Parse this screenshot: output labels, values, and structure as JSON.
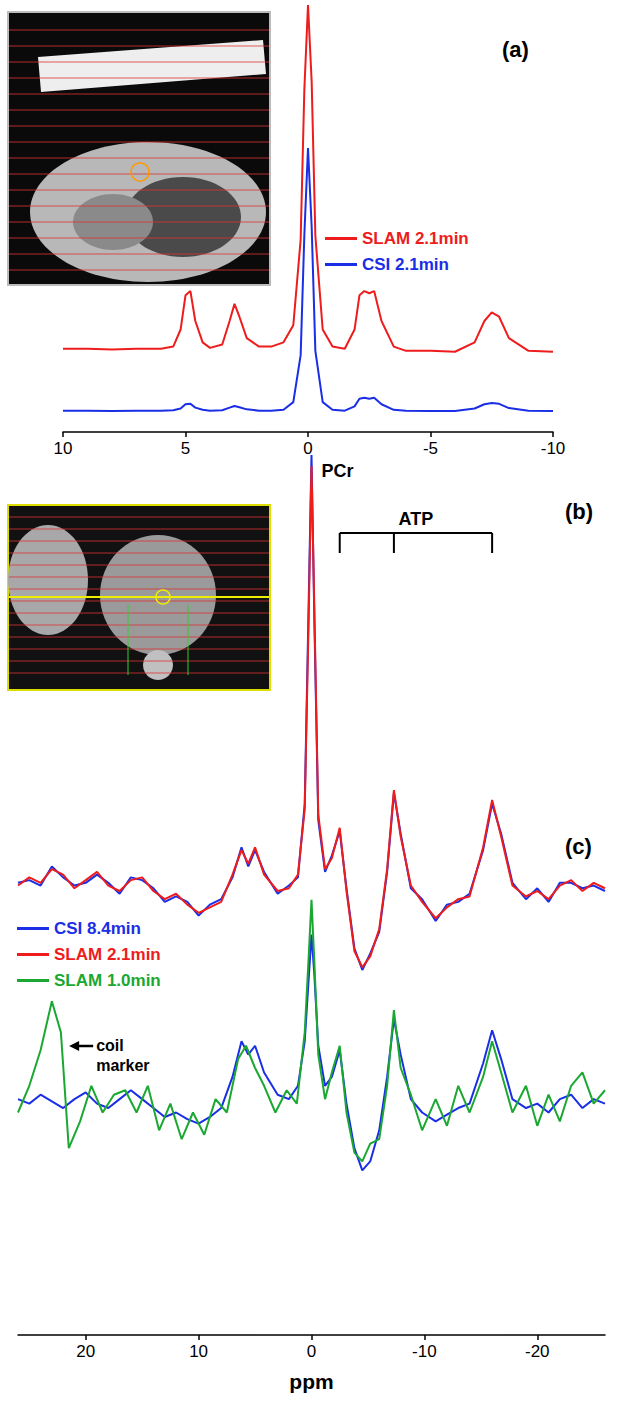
{
  "chart_data": [
    {
      "type": "line",
      "label": "(a)",
      "legend": "right",
      "tick_labels": "x",
      "grid": false,
      "marker": "none",
      "xlim": [
        10,
        -10
      ],
      "xticks": [
        10,
        5,
        0,
        -5,
        -10
      ],
      "ylim": [
        0,
        10
      ],
      "series": [
        {
          "name": "SLAM 2.1min",
          "color": "#ee1c1c",
          "x": [
            10,
            9,
            8,
            7,
            6,
            5.5,
            5.2,
            5.0,
            4.8,
            4.6,
            4.3,
            4,
            3.5,
            3.2,
            3.0,
            2.8,
            2.5,
            2,
            1.5,
            1,
            0.6,
            0.3,
            0.15,
            0,
            -0.15,
            -0.3,
            -0.6,
            -1,
            -1.5,
            -1.9,
            -2.1,
            -2.3,
            -2.5,
            -2.7,
            -3,
            -3.5,
            -4,
            -5,
            -6,
            -6.8,
            -7.2,
            -7.5,
            -7.8,
            -8.2,
            -9,
            -10
          ],
          "values": [
            1.95,
            1.95,
            1.93,
            1.95,
            1.95,
            2.0,
            2.4,
            3.2,
            3.3,
            2.6,
            2.1,
            1.97,
            2.05,
            2.6,
            3.0,
            2.7,
            2.2,
            2.0,
            2.0,
            2.1,
            2.5,
            4.5,
            8.0,
            10,
            8.2,
            4.6,
            2.4,
            2.0,
            1.95,
            2.4,
            3.2,
            3.3,
            3.25,
            3.3,
            2.6,
            2.0,
            1.9,
            1.9,
            1.88,
            2.1,
            2.6,
            2.8,
            2.7,
            2.2,
            1.9,
            1.88
          ]
        },
        {
          "name": "CSI 2.1min",
          "color": "#1a2ee6",
          "x": [
            10,
            9,
            8,
            7,
            6,
            5.5,
            5.2,
            5.0,
            4.8,
            4.6,
            4.3,
            4,
            3.5,
            3.2,
            3.0,
            2.8,
            2.5,
            2,
            1.5,
            1,
            0.6,
            0.3,
            0.15,
            0,
            -0.15,
            -0.3,
            -0.6,
            -1,
            -1.5,
            -1.9,
            -2.1,
            -2.3,
            -2.5,
            -2.7,
            -3,
            -3.5,
            -4,
            -5,
            -6,
            -6.8,
            -7.2,
            -7.5,
            -7.8,
            -8.2,
            -9,
            -10
          ],
          "values": [
            0.5,
            0.5,
            0.49,
            0.5,
            0.5,
            0.51,
            0.55,
            0.65,
            0.66,
            0.57,
            0.52,
            0.5,
            0.51,
            0.57,
            0.61,
            0.58,
            0.53,
            0.5,
            0.5,
            0.52,
            0.7,
            1.8,
            4.6,
            6.65,
            4.8,
            1.9,
            0.7,
            0.52,
            0.5,
            0.6,
            0.78,
            0.8,
            0.78,
            0.8,
            0.65,
            0.52,
            0.5,
            0.49,
            0.49,
            0.55,
            0.65,
            0.68,
            0.66,
            0.56,
            0.5,
            0.49
          ]
        }
      ]
    },
    {
      "type": "line",
      "label": "(b)",
      "tick_labels": false,
      "grid": false,
      "marker": "none",
      "xlim": [
        26,
        -26
      ],
      "ylim": [
        0,
        10
      ],
      "annotations": [
        {
          "text": "PCr",
          "x": 0
        },
        {
          "text": "ATP",
          "x": [
            -2.5,
            -7.3,
            -16
          ]
        }
      ],
      "series": [
        {
          "name": "CSI 8.4min",
          "color": "#1a2ee6",
          "x": [
            26,
            25,
            24,
            23,
            22,
            21,
            20,
            19,
            18,
            17,
            16,
            15,
            14,
            13,
            12,
            11,
            10,
            9,
            8,
            7,
            6.2,
            5.6,
            5,
            4.2,
            3,
            2,
            1.2,
            0.6,
            0.25,
            0,
            -0.25,
            -0.6,
            -1.2,
            -1.8,
            -2.5,
            -3.1,
            -3.8,
            -4.5,
            -5.2,
            -6,
            -6.7,
            -7.3,
            -7.9,
            -8.8,
            -9.8,
            -11,
            -12,
            -13,
            -14,
            -15.2,
            -16,
            -16.8,
            -17.8,
            -19,
            -20,
            -21,
            -22,
            -23,
            -24,
            -25,
            -26
          ],
          "values": [
            2.15,
            2.2,
            2.1,
            2.45,
            2.25,
            2.1,
            2.15,
            2.3,
            2.15,
            1.95,
            2.25,
            2.2,
            2.05,
            1.8,
            1.9,
            1.8,
            1.55,
            1.75,
            1.85,
            2.25,
            2.8,
            2.45,
            2.75,
            2.35,
            1.95,
            2.1,
            2.25,
            3.6,
            7.3,
            10,
            7.0,
            3.3,
            2.35,
            2.65,
            3.1,
            2.05,
            0.95,
            0.55,
            0.85,
            1.25,
            2.35,
            3.8,
            3.05,
            2.05,
            1.85,
            1.45,
            1.75,
            1.8,
            1.95,
            2.75,
            3.6,
            3.05,
            2.15,
            1.85,
            2.05,
            1.8,
            2.15,
            2.15,
            2.05,
            2.1,
            2.0
          ]
        },
        {
          "name": "SLAM 2.1min",
          "color": "#ee1c1c",
          "x": [
            26,
            25,
            24,
            23,
            22,
            21,
            20,
            19,
            18,
            17,
            16,
            15,
            14,
            13,
            12,
            11,
            10,
            9,
            8,
            7,
            6.2,
            5.6,
            5,
            4.2,
            3,
            2,
            1.2,
            0.6,
            0.25,
            0,
            -0.25,
            -0.6,
            -1.2,
            -1.8,
            -2.5,
            -3.1,
            -3.8,
            -4.5,
            -5.2,
            -6,
            -6.7,
            -7.3,
            -7.9,
            -8.8,
            -9.8,
            -11,
            -12,
            -13,
            -14,
            -15.2,
            -16,
            -16.8,
            -17.8,
            -19,
            -20,
            -21,
            -22,
            -23,
            -24,
            -25,
            -26
          ],
          "values": [
            2.1,
            2.25,
            2.15,
            2.4,
            2.3,
            2.05,
            2.2,
            2.35,
            2.1,
            2.0,
            2.2,
            2.25,
            2.0,
            1.85,
            1.95,
            1.75,
            1.6,
            1.7,
            1.8,
            2.3,
            2.75,
            2.5,
            2.8,
            2.3,
            2.0,
            2.05,
            2.3,
            3.5,
            7,
            9.8,
            7.2,
            3.4,
            2.4,
            2.6,
            3.16,
            2.0,
            0.9,
            0.6,
            0.8,
            1.3,
            2.4,
            3.85,
            3.0,
            2.1,
            1.8,
            1.5,
            1.7,
            1.85,
            1.9,
            2.8,
            3.67,
            3.0,
            2.1,
            1.9,
            2.0,
            1.85,
            2.1,
            2.2,
            2.0,
            2.15,
            2.05
          ]
        }
      ]
    },
    {
      "type": "line",
      "label": "(c)",
      "legend": "left",
      "tick_labels": "x",
      "grid": false,
      "marker": "none",
      "x_label": "ppm",
      "xlim": [
        26,
        -26
      ],
      "xticks": [
        20,
        10,
        0,
        -10,
        -20
      ],
      "ylim": [
        0,
        10
      ],
      "annotations": [
        {
          "text": "coil marker",
          "x": 22
        }
      ],
      "series": [
        {
          "name": "CSI 8.4min",
          "color": "#1a2ee6",
          "x": [
            26,
            25,
            24,
            23,
            22,
            21,
            20,
            19,
            18,
            17,
            16,
            15,
            14,
            13,
            12,
            11,
            10,
            9,
            8,
            7,
            6.2,
            5.6,
            5,
            4.2,
            3,
            2,
            1.2,
            0.6,
            0.25,
            0,
            -0.25,
            -0.6,
            -1.2,
            -1.8,
            -2.5,
            -3.1,
            -3.8,
            -4.5,
            -5.2,
            -6,
            -6.7,
            -7.3,
            -7.9,
            -8.8,
            -9.8,
            -11,
            -12,
            -13,
            -14,
            -15.2,
            -16,
            -16.8,
            -17.8,
            -19,
            -20,
            -21,
            -22,
            -23,
            -24,
            -25,
            -26
          ],
          "values": [
            5.3,
            5.2,
            5.4,
            5.25,
            5.1,
            5.3,
            5.45,
            5.2,
            5.1,
            5.3,
            5.5,
            5.3,
            5.1,
            4.9,
            5.0,
            4.85,
            4.75,
            4.9,
            5.1,
            5.8,
            6.6,
            6.3,
            6.5,
            5.9,
            5.4,
            5.3,
            5.6,
            6.6,
            8.0,
            9.0,
            8.1,
            6.5,
            5.6,
            5.8,
            6.4,
            5.2,
            4.2,
            3.7,
            3.9,
            4.6,
            5.8,
            7.1,
            6.3,
            5.3,
            5.0,
            4.8,
            4.95,
            5.1,
            5.2,
            6.1,
            6.85,
            6.2,
            5.3,
            5.1,
            5.2,
            5.0,
            5.3,
            5.4,
            5.1,
            5.3,
            5.2
          ]
        },
        {
          "name": "SLAM 1.0min",
          "color": "#1aa832",
          "x": [
            26,
            25,
            24,
            23,
            22.2,
            21.5,
            20.5,
            19.5,
            18.5,
            17.5,
            16.5,
            15.5,
            14.5,
            13.5,
            12.5,
            11.5,
            10.5,
            9.5,
            8.5,
            7.5,
            6.5,
            5.8,
            5,
            4.2,
            3.2,
            2.2,
            1.3,
            0.6,
            0.25,
            0,
            -0.25,
            -0.6,
            -1.2,
            -1.8,
            -2.5,
            -3.1,
            -3.8,
            -4.5,
            -5.2,
            -6,
            -6.7,
            -7.3,
            -7.9,
            -8.8,
            -9.8,
            -11,
            -12,
            -13,
            -14,
            -15.2,
            -16,
            -16.8,
            -17.8,
            -19,
            -20,
            -21,
            -22,
            -23,
            -24,
            -25,
            -26
          ],
          "values": [
            5.0,
            5.6,
            6.4,
            7.5,
            6.8,
            4.2,
            4.8,
            5.6,
            5.0,
            5.4,
            5.5,
            5.0,
            5.6,
            4.6,
            5.2,
            4.4,
            5.0,
            4.5,
            5.3,
            5.0,
            6.2,
            6.5,
            6.0,
            5.6,
            5.0,
            5.5,
            5.2,
            6.8,
            8.5,
            9.78,
            8.4,
            6.3,
            5.3,
            5.9,
            6.5,
            5.0,
            4.1,
            3.9,
            4.3,
            4.4,
            5.6,
            7.3,
            6.0,
            5.4,
            4.6,
            5.3,
            4.7,
            5.6,
            5.0,
            5.8,
            6.6,
            5.9,
            5.0,
            5.6,
            4.7,
            5.4,
            4.8,
            5.6,
            5.9,
            5.2,
            5.5
          ]
        }
      ]
    }
  ]
}
